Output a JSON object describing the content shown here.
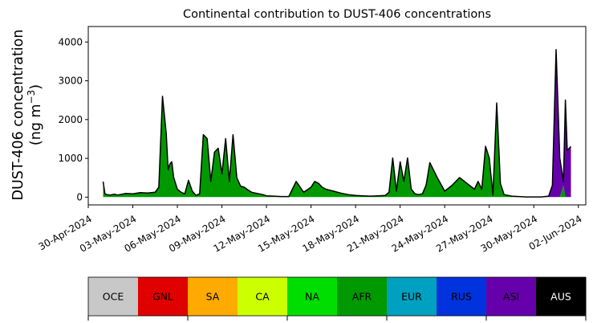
{
  "chart_data": {
    "type": "area",
    "stacked": true,
    "title": "Continental contribution to DUST-406 concentrations",
    "ylabel": "DUST-406 concentration",
    "ylabel_unit": "(ng m",
    "ylabel_unit_exp": "−3",
    "ylabel_unit_close": ")",
    "ylim": [
      -200,
      4400
    ],
    "yticks": [
      0,
      1000,
      2000,
      3000,
      4000
    ],
    "xlim": [
      "2024-04-30T00:00",
      "2024-06-02T12:00"
    ],
    "xtick_values": [
      "2024-04-30",
      "2024-05-03",
      "2024-05-06",
      "2024-05-09",
      "2024-05-12",
      "2024-05-15",
      "2024-05-18",
      "2024-05-21",
      "2024-05-24",
      "2024-05-27",
      "2024-05-30",
      "2024-06-02"
    ],
    "xtick_labels": [
      "30-Apr-2024",
      "03-May-2024",
      "06-May-2024",
      "09-May-2024",
      "12-May-2024",
      "15-May-2024",
      "18-May-2024",
      "21-May-2024",
      "24-May-2024",
      "27-May-2024",
      "30-May-2024",
      "02-Jun-2024"
    ],
    "x": [
      "2024-05-01T00:00",
      "2024-05-01T03:00",
      "2024-05-01T06:00",
      "2024-05-01T12:00",
      "2024-05-01T18:00",
      "2024-05-02T00:00",
      "2024-05-02T12:00",
      "2024-05-03T00:00",
      "2024-05-03T12:00",
      "2024-05-04T00:00",
      "2024-05-04T12:00",
      "2024-05-04T18:00",
      "2024-05-05T00:00",
      "2024-05-05T06:00",
      "2024-05-05T09:00",
      "2024-05-05T12:00",
      "2024-05-05T15:00",
      "2024-05-05T18:00",
      "2024-05-06T00:00",
      "2024-05-06T06:00",
      "2024-05-06T12:00",
      "2024-05-06T18:00",
      "2024-05-07T00:00",
      "2024-05-07T06:00",
      "2024-05-07T12:00",
      "2024-05-07T18:00",
      "2024-05-08T00:00",
      "2024-05-08T06:00",
      "2024-05-08T12:00",
      "2024-05-08T18:00",
      "2024-05-09T00:00",
      "2024-05-09T06:00",
      "2024-05-09T12:00",
      "2024-05-09T18:00",
      "2024-05-10T00:00",
      "2024-05-10T06:00",
      "2024-05-10T12:00",
      "2024-05-10T18:00",
      "2024-05-11T00:00",
      "2024-05-11T06:00",
      "2024-05-11T12:00",
      "2024-05-11T18:00",
      "2024-05-12T00:00",
      "2024-05-12T12:00",
      "2024-05-13T00:00",
      "2024-05-13T12:00",
      "2024-05-14T00:00",
      "2024-05-14T12:00",
      "2024-05-15T00:00",
      "2024-05-15T06:00",
      "2024-05-15T12:00",
      "2024-05-15T18:00",
      "2024-05-16T00:00",
      "2024-05-16T12:00",
      "2024-05-17T00:00",
      "2024-05-17T12:00",
      "2024-05-18T00:00",
      "2024-05-18T12:00",
      "2024-05-19T00:00",
      "2024-05-19T12:00",
      "2024-05-20T00:00",
      "2024-05-20T06:00",
      "2024-05-20T12:00",
      "2024-05-20T18:00",
      "2024-05-21T00:00",
      "2024-05-21T06:00",
      "2024-05-21T12:00",
      "2024-05-21T18:00",
      "2024-05-22T00:00",
      "2024-05-22T06:00",
      "2024-05-22T12:00",
      "2024-05-22T18:00",
      "2024-05-23T00:00",
      "2024-05-23T12:00",
      "2024-05-24T00:00",
      "2024-05-24T12:00",
      "2024-05-25T00:00",
      "2024-05-25T12:00",
      "2024-05-26T00:00",
      "2024-05-26T06:00",
      "2024-05-26T12:00",
      "2024-05-26T18:00",
      "2024-05-27T00:00",
      "2024-05-27T06:00",
      "2024-05-27T12:00",
      "2024-05-27T18:00",
      "2024-05-28T00:00",
      "2024-05-28T12:00",
      "2024-05-29T00:00",
      "2024-05-29T12:00",
      "2024-05-30T00:00",
      "2024-05-30T12:00",
      "2024-05-31T00:00",
      "2024-05-31T06:00",
      "2024-05-31T12:00",
      "2024-05-31T18:00",
      "2024-06-01T00:00",
      "2024-06-01T03:00",
      "2024-06-01T06:00",
      "2024-06-01T09:00",
      "2024-06-01T12:00"
    ],
    "series": [
      {
        "name": "OCE",
        "color": "#c8c8c8",
        "values": [
          0,
          0,
          0,
          0,
          0,
          0,
          0,
          0,
          0,
          0,
          0,
          0,
          0,
          0,
          0,
          0,
          0,
          0,
          0,
          0,
          0,
          0,
          0,
          0,
          0,
          0,
          0,
          0,
          0,
          0,
          0,
          0,
          0,
          0,
          0,
          0,
          0,
          0,
          0,
          0,
          0,
          0,
          0,
          0,
          0,
          0,
          0,
          0,
          0,
          0,
          0,
          0,
          0,
          0,
          0,
          0,
          0,
          0,
          0,
          0,
          0,
          0,
          0,
          0,
          0,
          0,
          0,
          0,
          0,
          0,
          0,
          0,
          0,
          0,
          0,
          0,
          0,
          0,
          0,
          0,
          0,
          0,
          0,
          0,
          0,
          0,
          0,
          0,
          0,
          0,
          0,
          0,
          0,
          0,
          0,
          0,
          0,
          0,
          0,
          0,
          0
        ]
      },
      {
        "name": "GNL",
        "color": "#e00000",
        "values": [
          0,
          0,
          0,
          0,
          0,
          0,
          0,
          0,
          0,
          0,
          0,
          0,
          0,
          0,
          0,
          0,
          0,
          0,
          0,
          0,
          0,
          0,
          0,
          0,
          0,
          0,
          0,
          0,
          0,
          0,
          0,
          0,
          0,
          0,
          0,
          0,
          0,
          0,
          0,
          0,
          0,
          0,
          0,
          0,
          0,
          0,
          0,
          0,
          0,
          0,
          0,
          0,
          0,
          0,
          0,
          0,
          0,
          0,
          0,
          0,
          0,
          0,
          0,
          0,
          0,
          0,
          0,
          0,
          0,
          0,
          0,
          0,
          0,
          0,
          0,
          0,
          0,
          0,
          0,
          0,
          0,
          0,
          0,
          0,
          0,
          0,
          0,
          0,
          0,
          0,
          0,
          0,
          0,
          0,
          0,
          0,
          0,
          0,
          0,
          0,
          0
        ]
      },
      {
        "name": "SA",
        "color": "#ffaa00",
        "values": [
          0,
          0,
          0,
          0,
          0,
          0,
          0,
          0,
          0,
          0,
          0,
          0,
          0,
          0,
          0,
          0,
          0,
          0,
          0,
          0,
          0,
          0,
          0,
          0,
          0,
          0,
          0,
          0,
          0,
          0,
          0,
          0,
          0,
          0,
          0,
          0,
          0,
          0,
          0,
          0,
          0,
          0,
          0,
          0,
          0,
          0,
          0,
          0,
          0,
          0,
          0,
          0,
          0,
          0,
          0,
          0,
          0,
          0,
          0,
          0,
          0,
          0,
          0,
          0,
          0,
          0,
          0,
          0,
          0,
          0,
          0,
          0,
          0,
          0,
          0,
          0,
          0,
          0,
          0,
          0,
          0,
          0,
          0,
          0,
          0,
          0,
          0,
          0,
          0,
          0,
          0,
          0,
          0,
          0,
          0,
          0,
          0,
          0,
          0,
          0,
          0
        ]
      },
      {
        "name": "CA",
        "color": "#ccff00",
        "values": [
          0,
          0,
          0,
          0,
          0,
          0,
          0,
          0,
          0,
          0,
          0,
          0,
          0,
          0,
          0,
          0,
          0,
          0,
          0,
          0,
          0,
          0,
          0,
          0,
          0,
          0,
          0,
          0,
          0,
          0,
          0,
          0,
          0,
          0,
          0,
          0,
          0,
          0,
          0,
          0,
          0,
          0,
          0,
          0,
          0,
          0,
          0,
          0,
          0,
          0,
          0,
          0,
          0,
          0,
          0,
          0,
          0,
          0,
          0,
          0,
          0,
          0,
          0,
          0,
          0,
          0,
          0,
          0,
          0,
          0,
          0,
          0,
          0,
          0,
          0,
          0,
          0,
          0,
          0,
          0,
          0,
          0,
          0,
          0,
          0,
          0,
          0,
          0,
          0,
          0,
          0,
          0,
          0,
          0,
          0,
          0,
          0,
          0,
          0,
          0,
          0
        ]
      },
      {
        "name": "NA",
        "color": "#00dd00",
        "values": [
          0,
          0,
          0,
          0,
          0,
          0,
          0,
          0,
          0,
          0,
          0,
          0,
          0,
          0,
          0,
          0,
          0,
          0,
          0,
          0,
          0,
          0,
          0,
          0,
          0,
          0,
          0,
          0,
          0,
          0,
          0,
          0,
          0,
          0,
          0,
          0,
          0,
          0,
          0,
          0,
          0,
          0,
          0,
          0,
          0,
          0,
          0,
          0,
          0,
          0,
          0,
          0,
          0,
          0,
          0,
          0,
          0,
          0,
          0,
          0,
          0,
          0,
          0,
          0,
          0,
          0,
          0,
          0,
          0,
          0,
          0,
          0,
          0,
          0,
          0,
          0,
          0,
          0,
          0,
          0,
          0,
          0,
          0,
          0,
          0,
          0,
          0,
          0,
          0,
          0,
          0,
          0,
          0,
          0,
          0,
          0,
          0,
          0,
          0,
          0,
          0
        ]
      },
      {
        "name": "AFR",
        "color": "#009900",
        "values": [
          390,
          80,
          60,
          50,
          70,
          50,
          90,
          80,
          110,
          100,
          120,
          250,
          2550,
          1600,
          700,
          850,
          900,
          500,
          200,
          120,
          80,
          430,
          150,
          40,
          80,
          1600,
          1500,
          400,
          1150,
          1250,
          600,
          1500,
          400,
          1600,
          500,
          280,
          250,
          180,
          120,
          100,
          80,
          60,
          30,
          20,
          10,
          10,
          400,
          120,
          250,
          400,
          350,
          250,
          200,
          150,
          100,
          60,
          40,
          30,
          20,
          30,
          40,
          120,
          1000,
          150,
          900,
          400,
          1000,
          200,
          80,
          60,
          80,
          300,
          880,
          500,
          150,
          300,
          500,
          350,
          200,
          400,
          200,
          1300,
          1000,
          50,
          2400,
          350,
          60,
          20,
          10,
          0,
          0,
          0,
          0,
          0,
          0,
          0,
          300,
          0,
          0,
          0,
          0
        ]
      },
      {
        "name": "EUR",
        "color": "#00a0c0",
        "values": [
          0,
          0,
          0,
          0,
          0,
          0,
          0,
          0,
          0,
          0,
          0,
          0,
          0,
          0,
          0,
          0,
          0,
          0,
          0,
          0,
          0,
          0,
          0,
          0,
          0,
          0,
          0,
          0,
          0,
          0,
          0,
          0,
          0,
          0,
          0,
          0,
          0,
          0,
          0,
          0,
          0,
          0,
          0,
          0,
          0,
          0,
          0,
          0,
          0,
          0,
          0,
          0,
          0,
          0,
          0,
          0,
          0,
          0,
          0,
          0,
          0,
          0,
          0,
          0,
          0,
          0,
          0,
          0,
          0,
          0,
          0,
          0,
          0,
          0,
          0,
          0,
          0,
          0,
          0,
          0,
          0,
          0,
          0,
          0,
          0,
          0,
          0,
          0,
          0,
          0,
          0,
          0,
          0,
          0,
          0,
          0,
          0,
          0,
          0,
          0,
          0
        ]
      },
      {
        "name": "RUS",
        "color": "#0033dd",
        "values": [
          10,
          5,
          5,
          5,
          5,
          5,
          5,
          5,
          5,
          5,
          5,
          5,
          50,
          30,
          10,
          10,
          10,
          10,
          5,
          5,
          5,
          5,
          5,
          5,
          5,
          10,
          10,
          5,
          10,
          10,
          5,
          10,
          5,
          10,
          5,
          5,
          5,
          5,
          5,
          5,
          5,
          5,
          5,
          5,
          5,
          5,
          5,
          5,
          5,
          5,
          5,
          5,
          5,
          5,
          5,
          5,
          5,
          5,
          5,
          5,
          5,
          5,
          10,
          5,
          10,
          5,
          10,
          5,
          5,
          5,
          5,
          5,
          10,
          5,
          5,
          5,
          5,
          5,
          5,
          5,
          5,
          10,
          10,
          5,
          30,
          5,
          5,
          5,
          5,
          5,
          5,
          5,
          5,
          5,
          5,
          5,
          5,
          5,
          5,
          5,
          5
        ]
      },
      {
        "name": "ASI",
        "color": "#6600aa",
        "values": [
          0,
          0,
          0,
          0,
          0,
          0,
          0,
          0,
          0,
          0,
          0,
          0,
          0,
          0,
          0,
          0,
          0,
          0,
          0,
          0,
          0,
          0,
          0,
          0,
          0,
          0,
          0,
          0,
          0,
          0,
          0,
          0,
          0,
          0,
          0,
          0,
          0,
          0,
          0,
          0,
          0,
          0,
          0,
          0,
          0,
          0,
          0,
          0,
          0,
          0,
          0,
          0,
          0,
          0,
          0,
          0,
          0,
          0,
          0,
          0,
          0,
          0,
          0,
          0,
          0,
          0,
          0,
          0,
          0,
          0,
          0,
          0,
          0,
          0,
          0,
          0,
          0,
          0,
          0,
          0,
          0,
          0,
          0,
          0,
          0,
          0,
          0,
          0,
          0,
          0,
          0,
          0,
          20,
          300,
          3800,
          1000,
          100,
          2500,
          1200,
          1250,
          1300
        ]
      },
      {
        "name": "AUS",
        "color": "#000000",
        "values": [
          0,
          0,
          0,
          0,
          0,
          0,
          0,
          0,
          0,
          0,
          0,
          0,
          0,
          0,
          0,
          0,
          0,
          0,
          0,
          0,
          0,
          0,
          0,
          0,
          0,
          0,
          0,
          0,
          0,
          0,
          0,
          0,
          0,
          0,
          0,
          0,
          0,
          0,
          0,
          0,
          0,
          0,
          0,
          0,
          0,
          0,
          0,
          0,
          0,
          0,
          0,
          0,
          0,
          0,
          0,
          0,
          0,
          0,
          0,
          0,
          0,
          0,
          0,
          0,
          0,
          0,
          0,
          0,
          0,
          0,
          0,
          0,
          0,
          0,
          0,
          0,
          0,
          0,
          0,
          0,
          0,
          0,
          0,
          0,
          0,
          0,
          0,
          0,
          0,
          0,
          0,
          0,
          0,
          0,
          0,
          0,
          0,
          0,
          0,
          0,
          0
        ]
      }
    ],
    "legend": {
      "placement": "bottom",
      "items": [
        {
          "label": "OCE",
          "color": "#c8c8c8",
          "text_color": "#000000"
        },
        {
          "label": "GNL",
          "color": "#e00000",
          "text_color": "#000000"
        },
        {
          "label": "SA",
          "color": "#ffaa00",
          "text_color": "#000000"
        },
        {
          "label": "CA",
          "color": "#ccff00",
          "text_color": "#000000"
        },
        {
          "label": "NA",
          "color": "#00dd00",
          "text_color": "#000000"
        },
        {
          "label": "AFR",
          "color": "#009900",
          "text_color": "#000000"
        },
        {
          "label": "EUR",
          "color": "#00a0c0",
          "text_color": "#000000"
        },
        {
          "label": "RUS",
          "color": "#0033dd",
          "text_color": "#000000"
        },
        {
          "label": "ASI",
          "color": "#6600aa",
          "text_color": "#000000"
        },
        {
          "label": "AUS",
          "color": "#000000",
          "text_color": "#ffffff"
        }
      ]
    },
    "grid": false
  }
}
